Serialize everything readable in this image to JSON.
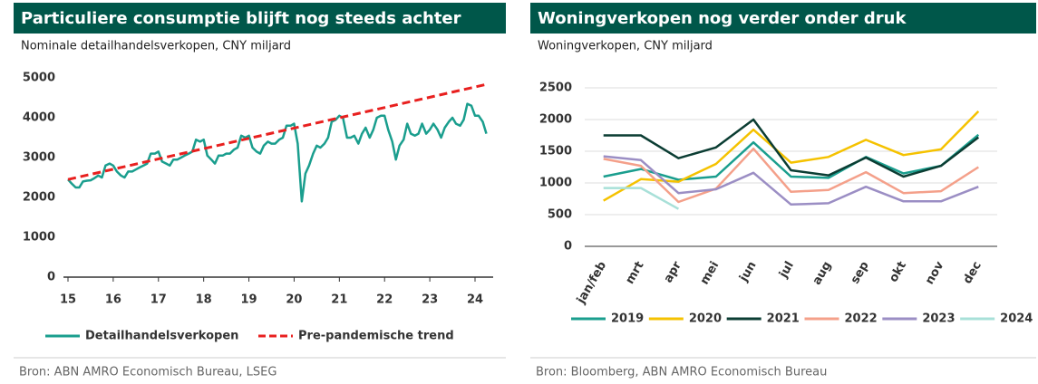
{
  "chart_data": [
    {
      "type": "line",
      "title": "Particuliere consumptie blijft nog steeds achter",
      "subtitle": "Nominale detailhandelsverkopen, CNY miljard",
      "source": "Bron: ABN AMRO Economisch Bureau, LSEG",
      "xlim": [
        15,
        24.35
      ],
      "xticks": [
        15,
        16,
        17,
        18,
        19,
        20,
        21,
        22,
        23,
        24
      ],
      "ylim": [
        0,
        5000
      ],
      "yticks": [
        0,
        1000,
        2000,
        3000,
        4000,
        5000
      ],
      "grid": false,
      "series": [
        {
          "name": "Detailhandelsverkopen",
          "color": "#1a9e8e",
          "dash": false,
          "x": [
            15,
            15.08,
            15.17,
            15.25,
            15.33,
            15.42,
            15.5,
            15.58,
            15.67,
            15.75,
            15.83,
            15.92,
            16,
            16.08,
            16.17,
            16.25,
            16.33,
            16.42,
            16.5,
            16.58,
            16.67,
            16.75,
            16.83,
            16.92,
            17,
            17.08,
            17.17,
            17.25,
            17.33,
            17.42,
            17.5,
            17.58,
            17.67,
            17.75,
            17.83,
            17.92,
            18,
            18.08,
            18.17,
            18.25,
            18.33,
            18.42,
            18.5,
            18.58,
            18.67,
            18.75,
            18.83,
            18.92,
            19,
            19.08,
            19.17,
            19.25,
            19.33,
            19.42,
            19.5,
            19.58,
            19.67,
            19.75,
            19.83,
            19.92,
            20,
            20.08,
            20.17,
            20.25,
            20.33,
            20.42,
            20.5,
            20.58,
            20.67,
            20.75,
            20.83,
            20.92,
            21,
            21.08,
            21.17,
            21.25,
            21.33,
            21.42,
            21.5,
            21.58,
            21.67,
            21.75,
            21.83,
            21.92,
            22,
            22.08,
            22.17,
            22.25,
            22.33,
            22.42,
            22.5,
            22.58,
            22.67,
            22.75,
            22.83,
            22.92,
            23,
            23.08,
            23.17,
            23.25,
            23.33,
            23.42,
            23.5,
            23.58,
            23.67,
            23.75,
            23.83,
            23.92,
            24,
            24.08,
            24.17,
            24.25
          ],
          "values": [
            2450,
            2350,
            2250,
            2250,
            2400,
            2420,
            2430,
            2480,
            2550,
            2500,
            2800,
            2850,
            2800,
            2650,
            2550,
            2500,
            2650,
            2650,
            2700,
            2750,
            2800,
            2850,
            3100,
            3100,
            3150,
            2900,
            2850,
            2800,
            2950,
            2950,
            3000,
            3050,
            3100,
            3150,
            3450,
            3400,
            3450,
            3050,
            2950,
            2850,
            3050,
            3050,
            3100,
            3100,
            3200,
            3250,
            3550,
            3500,
            3550,
            3250,
            3150,
            3100,
            3300,
            3400,
            3350,
            3350,
            3450,
            3500,
            3800,
            3800,
            3850,
            3350,
            1900,
            2600,
            2800,
            3100,
            3300,
            3250,
            3350,
            3500,
            3900,
            3950,
            4050,
            4000,
            3500,
            3500,
            3550,
            3350,
            3600,
            3750,
            3500,
            3700,
            4000,
            4050,
            4050,
            3700,
            3400,
            2950,
            3300,
            3450,
            3850,
            3600,
            3550,
            3600,
            3850,
            3600,
            3700,
            3850,
            3700,
            3500,
            3750,
            3900,
            4000,
            3850,
            3800,
            3950,
            4350,
            4300,
            4050,
            4050,
            3900,
            3600
          ]
        },
        {
          "name": "Pre-pandemische trend",
          "color": "#e8201f",
          "dash": true,
          "x": [
            15,
            24.3
          ],
          "values": [
            2450,
            4850
          ]
        }
      ]
    },
    {
      "type": "line",
      "title": "Woningverkopen nog verder onder druk",
      "subtitle": "Woningverkopen, CNY miljard",
      "source": "Bron: Bloomberg, ABN AMRO Economisch Bureau",
      "categories": [
        "jan/feb",
        "mrt",
        "apr",
        "mei",
        "jun",
        "jul",
        "aug",
        "sep",
        "okt",
        "nov",
        "dec"
      ],
      "ylim": [
        0,
        2500
      ],
      "yticks": [
        0,
        500,
        1000,
        1500,
        2000,
        2500
      ],
      "grid": true,
      "series": [
        {
          "name": "2019",
          "color": "#1a9e8e",
          "values": [
            1100,
            1220,
            1050,
            1100,
            1640,
            1100,
            1080,
            1410,
            1150,
            1270,
            1760
          ]
        },
        {
          "name": "2020",
          "color": "#f5c200",
          "values": [
            720,
            1060,
            1020,
            1300,
            1840,
            1320,
            1410,
            1680,
            1440,
            1530,
            2130
          ]
        },
        {
          "name": "2021",
          "color": "#0b3d33",
          "values": [
            1750,
            1750,
            1390,
            1560,
            2000,
            1200,
            1120,
            1400,
            1100,
            1270,
            1720
          ]
        },
        {
          "name": "2022",
          "color": "#f4a08a",
          "values": [
            1380,
            1270,
            700,
            910,
            1540,
            860,
            890,
            1170,
            840,
            870,
            1250
          ]
        },
        {
          "name": "2023",
          "color": "#9b8ec4",
          "values": [
            1420,
            1360,
            840,
            900,
            1160,
            660,
            680,
            940,
            710,
            710,
            940
          ]
        },
        {
          "name": "2024",
          "color": "#a8e0d8",
          "values": [
            920,
            920,
            590,
            null,
            null,
            null,
            null,
            null,
            null,
            null,
            null
          ]
        }
      ]
    }
  ]
}
